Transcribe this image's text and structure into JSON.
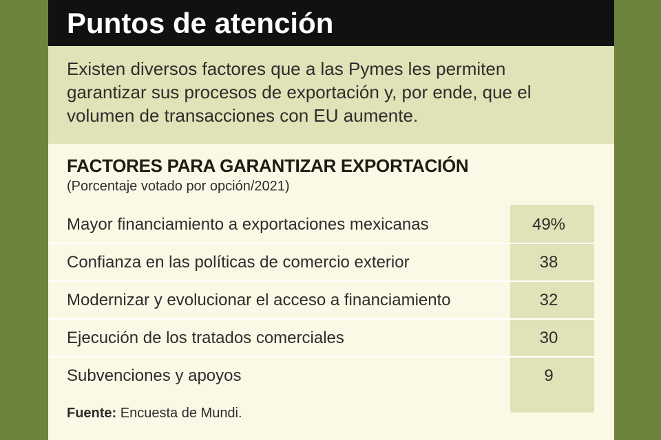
{
  "header": {
    "title": "Puntos de atención"
  },
  "intro": {
    "text": "Existen diversos factores que a las Pymes les permiten garantizar sus procesos de exportación y, por ende, que el volumen de transacciones con EU aumente."
  },
  "chart_data": {
    "type": "table",
    "title": "FACTORES PARA GARANTIZAR EXPORTACIÓN",
    "subtitle": "(Porcentaje votado por opción/2021)",
    "categories": [
      "Mayor financiamiento a exportaciones mexicanas",
      "Confianza en las políticas de comercio exterior",
      "Modernizar y evolucionar el acceso a financiamiento",
      "Ejecución de los tratados comerciales",
      "Subvenciones y apoyos"
    ],
    "values": [
      49,
      38,
      32,
      30,
      9
    ],
    "value_labels": [
      "49%",
      "38",
      "32",
      "30",
      "9"
    ]
  },
  "footer": {
    "source_label": "Fuente:",
    "source_text": "Encuesta de Mundi."
  },
  "colors": {
    "background": "#6d843f",
    "panel": "#fbf8e5",
    "highlight": "#e0e2b7",
    "title_bar": "#111111"
  }
}
